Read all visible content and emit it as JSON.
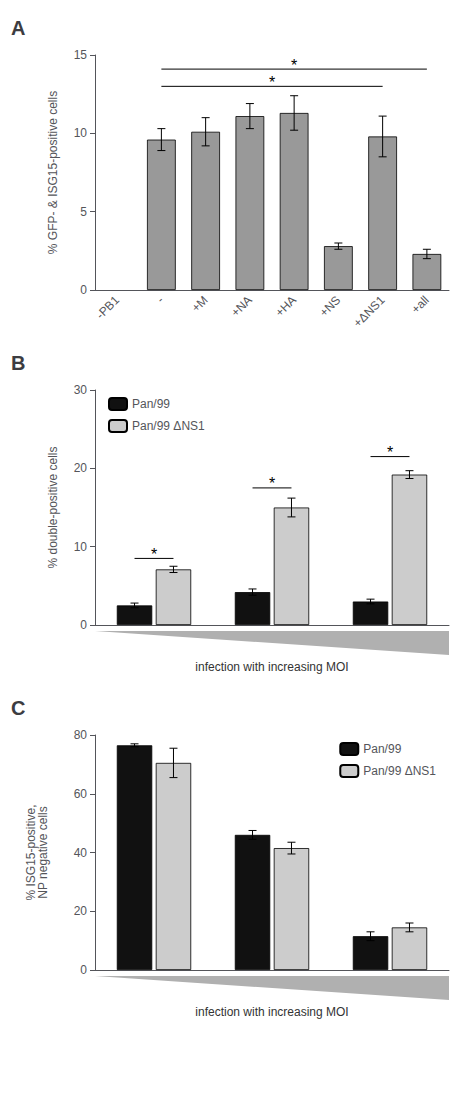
{
  "chart_data": [
    {
      "type": "bar",
      "title": "A",
      "categories": [
        "-PB1",
        "-",
        "+M",
        "+NA",
        "+HA",
        "+NS",
        "+ΔNS1",
        "+all"
      ],
      "values": [
        null,
        9.6,
        10.1,
        11.1,
        11.3,
        2.8,
        9.8,
        2.3
      ],
      "errors": [
        null,
        0.7,
        0.9,
        0.8,
        1.1,
        0.2,
        1.3,
        0.3
      ],
      "color": "#999999",
      "ylabel": "% GFP- & ISG15-positive cells",
      "ylim": [
        0,
        15
      ],
      "yticks": [
        0,
        5,
        10,
        15
      ],
      "grid": false,
      "annotations": [
        {
          "text": "*",
          "from": "-",
          "to": "+ΔNS1",
          "y": 13.0
        },
        {
          "text": "*",
          "from": "-",
          "to": "+all",
          "y": 14.1
        }
      ]
    },
    {
      "type": "bar",
      "title": "B",
      "categories": [
        null,
        null,
        null
      ],
      "series": [
        {
          "name": "Pan/99",
          "color": "#111111",
          "values": [
            2.5,
            4.2,
            3.0
          ],
          "errors": [
            0.3,
            0.4,
            0.3
          ]
        },
        {
          "name": "Pan/99 ΔNS1",
          "color": "#cccccc",
          "values": [
            7.1,
            15.0,
            19.2
          ],
          "errors": [
            0.4,
            1.2,
            0.5
          ]
        }
      ],
      "ylabel": "% double-positive cells",
      "xlabel": "infection with increasing MOI",
      "ylim": [
        0,
        30
      ],
      "yticks": [
        0,
        10,
        20,
        30
      ],
      "grid": false,
      "legend": "upper left",
      "tick_labels": "y",
      "annotations": [
        {
          "text": "*",
          "category_index": 0,
          "between": [
            "Pan/99",
            "Pan/99 ΔNS1"
          ],
          "y": 8.5
        },
        {
          "text": "*",
          "category_index": 1,
          "between": [
            "Pan/99",
            "Pan/99 ΔNS1"
          ],
          "y": 17.5
        },
        {
          "text": "*",
          "category_index": 2,
          "between": [
            "Pan/99",
            "Pan/99 ΔNS1"
          ],
          "y": 21.5
        }
      ]
    },
    {
      "type": "bar",
      "title": "C",
      "categories": [
        null,
        null,
        null
      ],
      "series": [
        {
          "name": "Pan/99",
          "color": "#111111",
          "values": [
            76.5,
            46.0,
            11.5
          ],
          "errors": [
            0.5,
            1.5,
            1.5
          ]
        },
        {
          "name": "Pan/99 ΔNS1",
          "color": "#cccccc",
          "values": [
            70.5,
            41.5,
            14.5
          ],
          "errors": [
            5.0,
            2.0,
            1.5
          ]
        }
      ],
      "ylabel": "% ISG15-positive,\nNP negative cells",
      "xlabel": "infection with increasing MOI",
      "ylim": [
        0,
        80
      ],
      "yticks": [
        0,
        20,
        40,
        60,
        80
      ],
      "grid": false,
      "legend": "upper right",
      "tick_labels": "y"
    }
  ]
}
